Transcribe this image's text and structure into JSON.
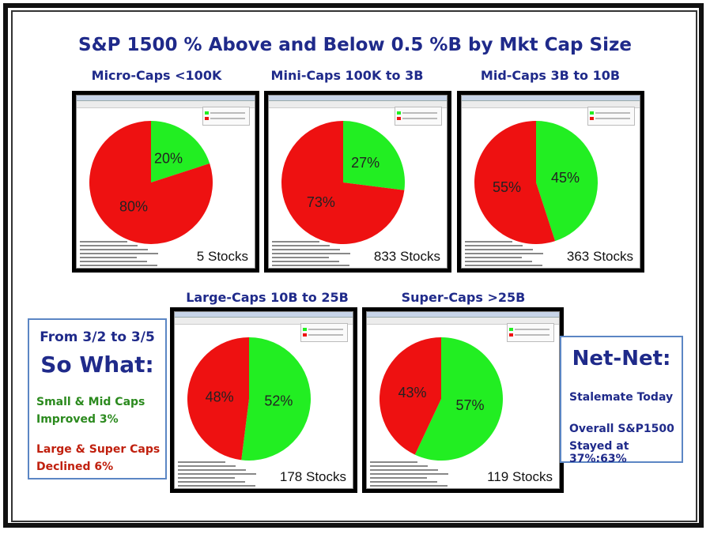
{
  "title": "S&P 1500 % Above and Below 0.5 %B by Mkt Cap Size",
  "colors": {
    "above": "#22ee22",
    "below": "#ee1111",
    "heading": "#1f2a8a"
  },
  "chart_data": [
    {
      "type": "pie",
      "title": "Micro-Caps <100K",
      "labels": [
        "20%",
        "80%"
      ],
      "values": [
        20,
        80
      ],
      "stocks": "5 Stocks"
    },
    {
      "type": "pie",
      "title": "Mini-Caps 100K to 3B",
      "labels": [
        "27%",
        "73%"
      ],
      "values": [
        27,
        73
      ],
      "stocks": "833 Stocks"
    },
    {
      "type": "pie",
      "title": "Mid-Caps 3B to 10B",
      "labels": [
        "45%",
        "55%"
      ],
      "values": [
        45,
        55
      ],
      "stocks": "363 Stocks"
    },
    {
      "type": "pie",
      "title": "Large-Caps 10B to 25B",
      "labels": [
        "52%",
        "48%"
      ],
      "values": [
        52,
        48
      ],
      "stocks": "178 Stocks"
    },
    {
      "type": "pie",
      "title": "Super-Caps >25B",
      "labels": [
        "57%",
        "43%"
      ],
      "values": [
        57,
        43
      ],
      "stocks": "119 Stocks"
    }
  ],
  "left_box": {
    "line1": "From 3/2 to 3/5",
    "line2": "So What:",
    "green_a": "Small & Mid Caps",
    "green_b": "Improved 3%",
    "red_a": "Large & Super Caps",
    "red_b": "Declined 6%"
  },
  "right_box": {
    "heading": "Net-Net:",
    "line1": "Stalemate Today",
    "line2a": "Overall S&P1500",
    "line2b": "Stayed at 37%:63%"
  }
}
